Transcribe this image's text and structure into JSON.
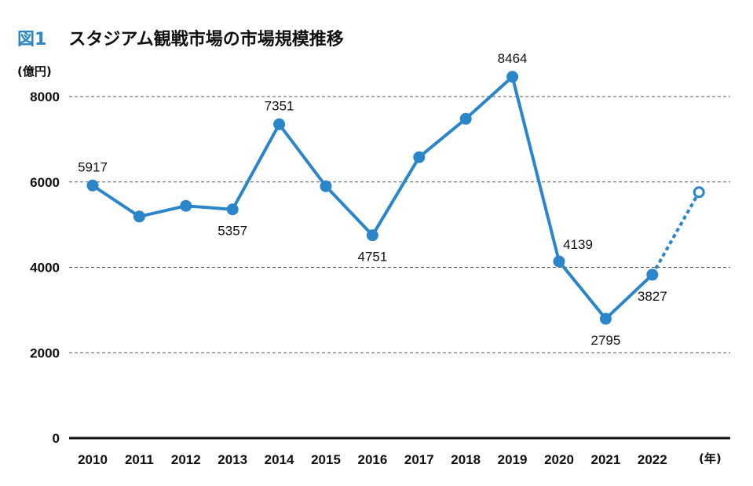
{
  "figure": {
    "label": "図1",
    "title": "スタジアム観戦市場の市場規模推移"
  },
  "colors": {
    "line": "#2a86c8",
    "grid": "#555555",
    "axis": "#111111"
  },
  "chart_data": {
    "type": "line",
    "title": "スタジアム観戦市場の市場規模推移",
    "ylabel": "(億円)",
    "xlabel": "(年)",
    "ylim": [
      0,
      8000
    ],
    "yticks": [
      0,
      2000,
      4000,
      6000,
      8000
    ],
    "grid": "horizontal dashed",
    "categories": [
      "2010",
      "2011",
      "2012",
      "2013",
      "2014",
      "2015",
      "2016",
      "2017",
      "2018",
      "2019",
      "2020",
      "2021",
      "2022"
    ],
    "series": [
      {
        "values": [
          5917,
          5190,
          5440,
          5357,
          7351,
          5900,
          4751,
          6580,
          7480,
          8464,
          4139,
          2795,
          3827
        ]
      }
    ],
    "forecast": {
      "from_index": 12,
      "x_offset": 1,
      "value": 5760,
      "style": "dashed-line-hollow-marker"
    },
    "data_labels": [
      {
        "index": 0,
        "text": "5917",
        "pos": "above"
      },
      {
        "index": 3,
        "text": "5357",
        "pos": "below"
      },
      {
        "index": 4,
        "text": "7351",
        "pos": "above"
      },
      {
        "index": 6,
        "text": "4751",
        "pos": "below"
      },
      {
        "index": 9,
        "text": "8464",
        "pos": "above"
      },
      {
        "index": 10,
        "text": "4139",
        "pos": "above-right"
      },
      {
        "index": 11,
        "text": "2795",
        "pos": "below"
      },
      {
        "index": 12,
        "text": "3827",
        "pos": "below"
      }
    ]
  }
}
